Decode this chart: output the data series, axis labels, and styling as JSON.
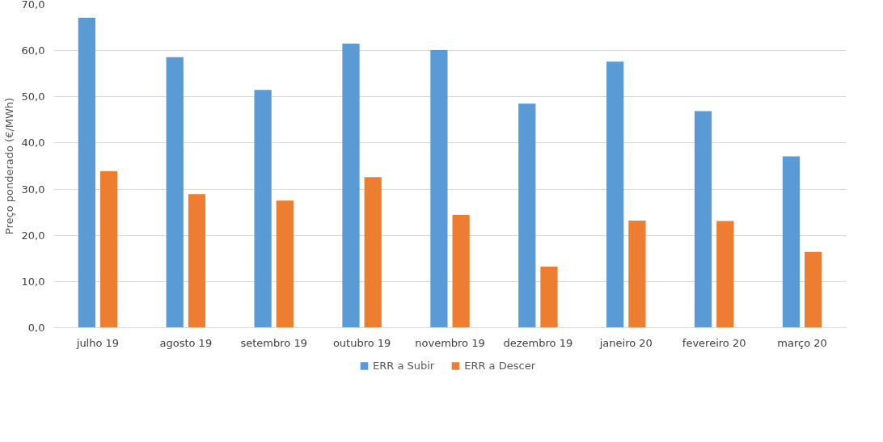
{
  "chart_data": {
    "type": "bar",
    "ylabel": "Preço ponderado (€/MWh)",
    "categories": [
      "julho 19",
      "agosto 19",
      "setembro 19",
      "outubro 19",
      "novembro 19",
      "dezembro 19",
      "janeiro 20",
      "fevereiro 20",
      "março 20"
    ],
    "series": [
      {
        "name": "ERR a Subir",
        "color": "#5b9bd5",
        "values": [
          67.1,
          58.6,
          51.5,
          61.5,
          60.1,
          48.5,
          57.6,
          46.9,
          37.1
        ]
      },
      {
        "name": "ERR a Descer",
        "color": "#ed7d31",
        "values": [
          33.9,
          28.9,
          27.5,
          32.6,
          24.4,
          13.2,
          23.2,
          23.1,
          16.4
        ]
      }
    ],
    "ylim": [
      0,
      70
    ],
    "yticks": [
      {
        "value": 0,
        "label": "0,0"
      },
      {
        "value": 10,
        "label": "10,0"
      },
      {
        "value": 20,
        "label": "20,0"
      },
      {
        "value": 30,
        "label": "30,0"
      },
      {
        "value": 40,
        "label": "40,0"
      },
      {
        "value": 50,
        "label": "50,0"
      },
      {
        "value": 60,
        "label": "60,0"
      },
      {
        "value": 70,
        "label": "70,0"
      }
    ],
    "grid": "y",
    "legend": "bottom"
  }
}
